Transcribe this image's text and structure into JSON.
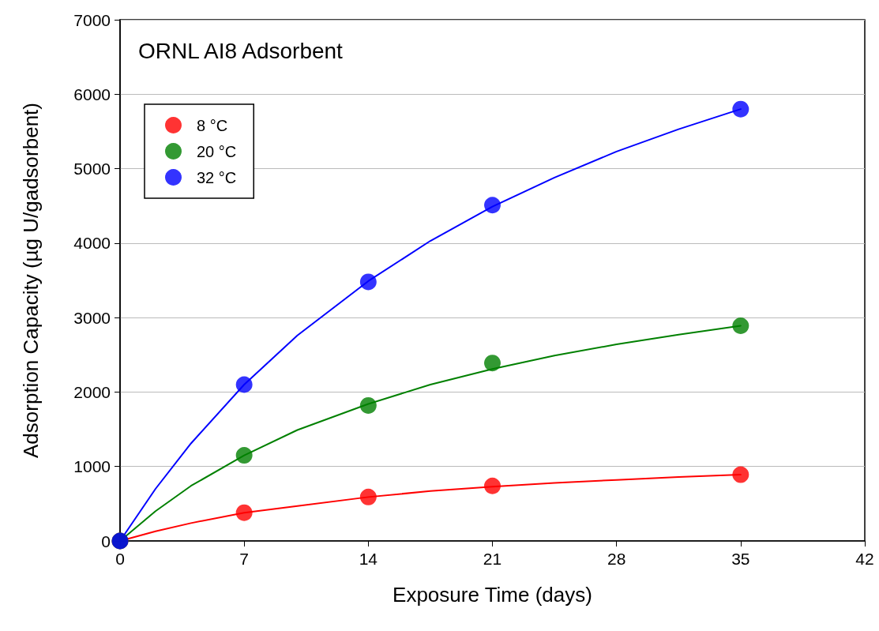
{
  "chart_data": {
    "type": "scatter",
    "title": "ORNL AI8 Adsorbent",
    "xlabel": "Exposure Time (days)",
    "ylabel": "Adsorption Capacity (µg U/gadsorbent)",
    "xlim": [
      0,
      42
    ],
    "xticks": [
      0,
      7,
      14,
      21,
      28,
      35,
      42
    ],
    "ylim": [
      0,
      7000
    ],
    "yticks": [
      0,
      1000,
      2000,
      3000,
      4000,
      5000,
      6000,
      7000
    ],
    "grid": "y",
    "legend": "top left",
    "series": [
      {
        "name": "8 °C",
        "color": "#ff0000",
        "marker": "circle",
        "x": [
          0,
          7,
          14,
          21,
          35
        ],
        "values": [
          0,
          380,
          590,
          740,
          890
        ]
      },
      {
        "name": "20 °C",
        "color": "#008000",
        "marker": "circle",
        "x": [
          0,
          7,
          14,
          21,
          35
        ],
        "values": [
          0,
          1150,
          1820,
          2390,
          2890
        ]
      },
      {
        "name": "32 °C",
        "color": "#0000ff",
        "marker": "circle",
        "x": [
          0,
          7,
          14,
          21,
          35
        ],
        "values": [
          0,
          2100,
          3480,
          4510,
          5800
        ]
      },
      {
        "type": "line",
        "color": "#ff0000",
        "marker": "none",
        "line_style": "solid",
        "x": [
          0,
          2,
          4,
          7,
          10,
          14,
          17.5,
          21,
          24.5,
          28,
          31.5,
          35
        ],
        "values": [
          0,
          130,
          240,
          380,
          470,
          590,
          670,
          730,
          780,
          820,
          860,
          890
        ]
      },
      {
        "type": "line",
        "color": "#008000",
        "marker": "none",
        "line_style": "solid",
        "x": [
          0,
          2,
          4,
          7,
          10,
          14,
          17.5,
          21,
          24.5,
          28,
          31.5,
          35
        ],
        "values": [
          0,
          400,
          740,
          1150,
          1490,
          1840,
          2100,
          2310,
          2490,
          2640,
          2770,
          2890
        ]
      },
      {
        "type": "line",
        "color": "#0000ff",
        "marker": "none",
        "line_style": "solid",
        "x": [
          0,
          2,
          4,
          7,
          10,
          14,
          17.5,
          21,
          24.5,
          28,
          31.5,
          35
        ],
        "values": [
          0,
          700,
          1310,
          2100,
          2760,
          3490,
          4030,
          4490,
          4880,
          5230,
          5530,
          5800
        ]
      }
    ]
  }
}
